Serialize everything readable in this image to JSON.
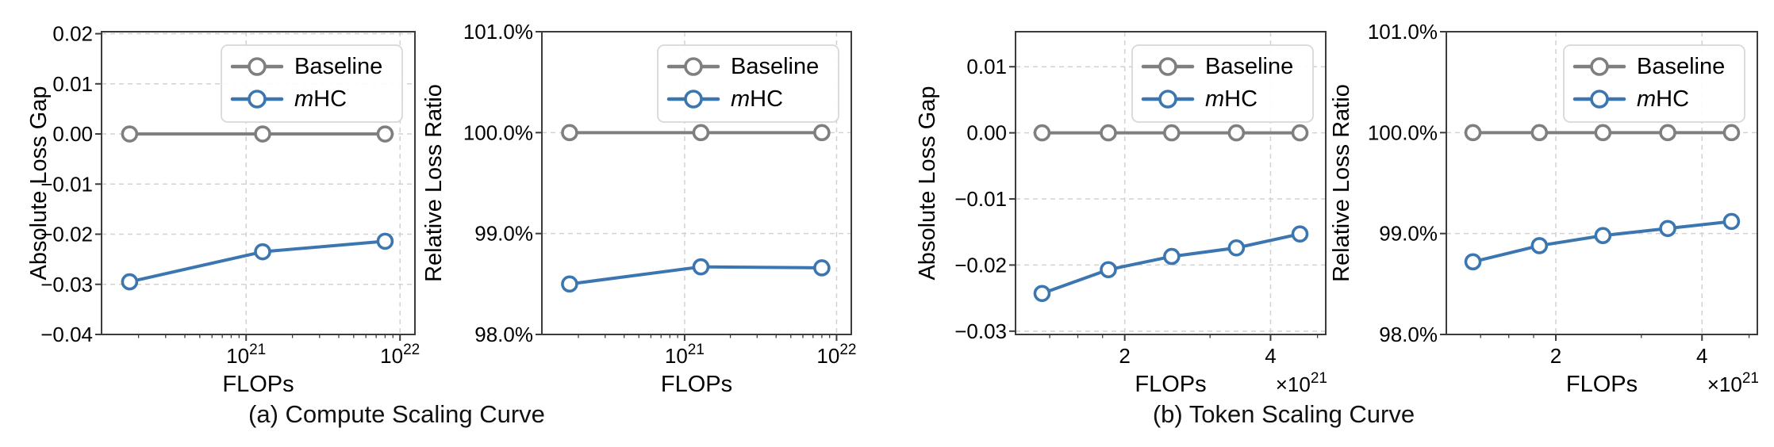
{
  "captions": [
    {
      "text": "(a) Compute Scaling Curve"
    },
    {
      "text": "(b) Token Scaling Curve"
    }
  ],
  "colors": {
    "baseline": "#7f7f7f",
    "mhc": "#3c76b0",
    "grid": "#d2d2d2",
    "axis": "#3b3b3b",
    "text": "#000000",
    "legend_border": "#d8d8d8",
    "background": "#ffffff"
  },
  "legend": {
    "items": [
      {
        "parts": [
          {
            "text": "Baseline",
            "italic": false
          }
        ]
      },
      {
        "parts": [
          {
            "text": "m",
            "italic": true
          },
          {
            "text": "HC",
            "italic": false
          }
        ]
      }
    ]
  },
  "chart_data": [
    {
      "id": "compute-absolute-loss-gap",
      "type": "line",
      "xlabel": "FLOPs",
      "ylabel": "Absolute Loss Gap",
      "xscale": "log",
      "xlim": [
        1.15e+20,
        1.25e+22
      ],
      "ylim": [
        -0.04,
        0.0204
      ],
      "grid": true,
      "legend_position": "top-right",
      "xticks": [
        {
          "value": 1e+21,
          "base": "10",
          "exp": "21"
        },
        {
          "value": 1e+22,
          "base": "10",
          "exp": "22"
        }
      ],
      "minor_xticks": [
        2e+20,
        3e+20,
        4e+20,
        5e+20,
        6e+20,
        7e+20,
        8e+20,
        9e+20,
        2e+21,
        3e+21,
        4e+21,
        5e+21,
        6e+21,
        7e+21,
        8e+21,
        9e+21
      ],
      "yticks": [
        {
          "value": 0.02,
          "label": "0.02"
        },
        {
          "value": 0.01,
          "label": "0.01"
        },
        {
          "value": 0.0,
          "label": "0.00"
        },
        {
          "value": -0.01,
          "label": "−0.01"
        },
        {
          "value": -0.02,
          "label": "−0.02"
        },
        {
          "value": -0.03,
          "label": "−0.03"
        },
        {
          "value": -0.04,
          "label": "−0.04"
        }
      ],
      "offset_text": null,
      "series": [
        {
          "name": "Baseline",
          "color": "#7f7f7f",
          "x": [
            1.75e+20,
            1.28e+21,
            8e+21
          ],
          "y": [
            0,
            0,
            0
          ]
        },
        {
          "name": "mHC",
          "color": "#3c76b0",
          "x": [
            1.75e+20,
            1.28e+21,
            8e+21
          ],
          "y": [
            -0.0295,
            -0.0235,
            -0.0214
          ]
        }
      ]
    },
    {
      "id": "compute-relative-loss-ratio",
      "type": "line",
      "xlabel": "FLOPs",
      "ylabel": "Relative Loss Ratio",
      "xscale": "log",
      "xlim": [
        1.15e+20,
        1.25e+22
      ],
      "ylim": [
        98.0,
        101.0
      ],
      "grid": true,
      "legend_position": "top-right",
      "xticks": [
        {
          "value": 1e+21,
          "base": "10",
          "exp": "21"
        },
        {
          "value": 1e+22,
          "base": "10",
          "exp": "22"
        }
      ],
      "minor_xticks": [
        2e+20,
        3e+20,
        4e+20,
        5e+20,
        6e+20,
        7e+20,
        8e+20,
        9e+20,
        2e+21,
        3e+21,
        4e+21,
        5e+21,
        6e+21,
        7e+21,
        8e+21,
        9e+21
      ],
      "yticks": [
        {
          "value": 101.0,
          "label": "101.0%"
        },
        {
          "value": 100.0,
          "label": "100.0%"
        },
        {
          "value": 99.0,
          "label": "99.0%"
        },
        {
          "value": 98.0,
          "label": "98.0%"
        }
      ],
      "offset_text": null,
      "series": [
        {
          "name": "Baseline",
          "color": "#7f7f7f",
          "x": [
            1.75e+20,
            1.28e+21,
            8e+21
          ],
          "y": [
            100.0,
            100.0,
            100.0
          ]
        },
        {
          "name": "mHC",
          "color": "#3c76b0",
          "x": [
            1.75e+20,
            1.28e+21,
            8e+21
          ],
          "y": [
            98.5,
            98.67,
            98.66
          ]
        }
      ]
    },
    {
      "id": "token-absolute-loss-gap",
      "type": "line",
      "xlabel": "FLOPs",
      "ylabel": "Absolute Loss Gap",
      "xscale": "log",
      "xlim": [
        1.19e+21,
        5.2e+21
      ],
      "ylim": [
        -0.0305,
        0.0153
      ],
      "grid": true,
      "legend_position": "top-right",
      "xticks": [
        {
          "value": 2e+21,
          "base": "2",
          "exp": null
        },
        {
          "value": 4e+21,
          "base": "4",
          "exp": null
        }
      ],
      "minor_xticks": [
        1.4e+21,
        1.6e+21,
        1.8e+21,
        3e+21,
        5e+21
      ],
      "yticks": [
        {
          "value": 0.01,
          "label": "0.01"
        },
        {
          "value": 0.0,
          "label": "0.00"
        },
        {
          "value": -0.01,
          "label": "−0.01"
        },
        {
          "value": -0.02,
          "label": "−0.02"
        },
        {
          "value": -0.03,
          "label": "−0.03"
        }
      ],
      "offset_text": {
        "base": "×10",
        "exp": "21"
      },
      "series": [
        {
          "name": "Baseline",
          "color": "#7f7f7f",
          "x": [
            1.35e+21,
            1.85e+21,
            2.5e+21,
            3.4e+21,
            4.6e+21
          ],
          "y": [
            0,
            0,
            0,
            0,
            0
          ]
        },
        {
          "name": "mHC",
          "color": "#3c76b0",
          "x": [
            1.35e+21,
            1.85e+21,
            2.5e+21,
            3.4e+21,
            4.6e+21
          ],
          "y": [
            -0.0243,
            -0.0207,
            -0.0187,
            -0.0174,
            -0.0153
          ]
        }
      ]
    },
    {
      "id": "token-relative-loss-ratio",
      "type": "line",
      "xlabel": "FLOPs",
      "ylabel": "Relative Loss Ratio",
      "xscale": "log",
      "xlim": [
        1.19e+21,
        5.2e+21
      ],
      "ylim": [
        98.0,
        101.0
      ],
      "grid": true,
      "legend_position": "top-right",
      "xticks": [
        {
          "value": 2e+21,
          "base": "2",
          "exp": null
        },
        {
          "value": 4e+21,
          "base": "4",
          "exp": null
        }
      ],
      "minor_xticks": [
        1.4e+21,
        1.6e+21,
        1.8e+21,
        3e+21,
        5e+21
      ],
      "yticks": [
        {
          "value": 101.0,
          "label": "101.0%"
        },
        {
          "value": 100.0,
          "label": "100.0%"
        },
        {
          "value": 99.0,
          "label": "99.0%"
        },
        {
          "value": 98.0,
          "label": "98.0%"
        }
      ],
      "offset_text": {
        "base": "×10",
        "exp": "21"
      },
      "series": [
        {
          "name": "Baseline",
          "color": "#7f7f7f",
          "x": [
            1.35e+21,
            1.85e+21,
            2.5e+21,
            3.4e+21,
            4.6e+21
          ],
          "y": [
            100.0,
            100.0,
            100.0,
            100.0,
            100.0
          ]
        },
        {
          "name": "mHC",
          "color": "#3c76b0",
          "x": [
            1.35e+21,
            1.85e+21,
            2.5e+21,
            3.4e+21,
            4.6e+21
          ],
          "y": [
            98.72,
            98.88,
            98.98,
            99.05,
            99.12
          ]
        }
      ]
    }
  ]
}
